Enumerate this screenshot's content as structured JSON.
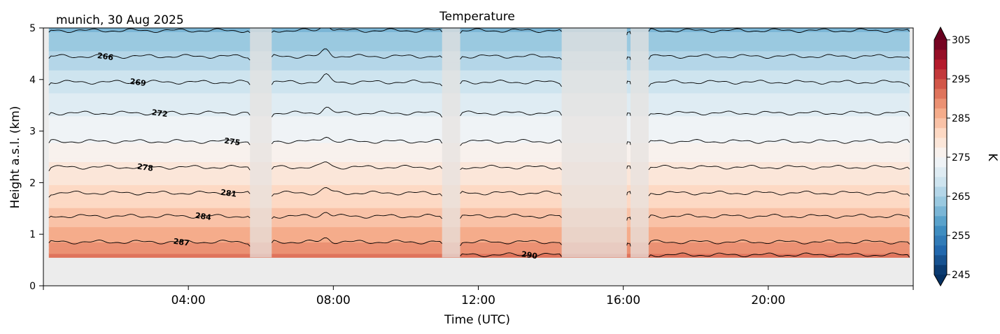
{
  "chart_data": {
    "type": "heatmap",
    "title": "Temperature",
    "subtitle": "munich, 30 Aug 2025",
    "xlabel": "Time (UTC)",
    "ylabel": "Height a.s.l. (km)",
    "x_unit": "hours UTC",
    "xlim": [
      0,
      24
    ],
    "ylim": [
      0,
      5
    ],
    "x_ticks": [
      {
        "value": 4,
        "label": "04:00"
      },
      {
        "value": 8,
        "label": "08:00"
      },
      {
        "value": 12,
        "label": "12:00"
      },
      {
        "value": 16,
        "label": "16:00"
      },
      {
        "value": 20,
        "label": "20:00"
      }
    ],
    "y_ticks": [
      {
        "value": 0,
        "label": "0"
      },
      {
        "value": 1,
        "label": "1"
      },
      {
        "value": 2,
        "label": "2"
      },
      {
        "value": 3,
        "label": "3"
      },
      {
        "value": 4,
        "label": "4"
      },
      {
        "value": 5,
        "label": "5"
      }
    ],
    "data_height_range_km": [
      0.55,
      5.0
    ],
    "data_time_range_h": [
      0.15,
      23.9
    ],
    "colormap": "RdBu_r",
    "colorbar": {
      "label": "K",
      "range": [
        245,
        305
      ],
      "ticks": [
        245,
        255,
        265,
        275,
        285,
        295,
        305
      ],
      "extend": "both"
    },
    "gaps_hours": [
      [
        5.7,
        6.3
      ],
      [
        11.0,
        11.5
      ],
      [
        14.3,
        16.1
      ],
      [
        16.2,
        16.7
      ]
    ],
    "temperature_profile": [
      {
        "height_km": 0.55,
        "temp_k": 290.5
      },
      {
        "height_km": 0.8,
        "temp_k": 288
      },
      {
        "height_km": 1.3,
        "temp_k": 284
      },
      {
        "height_km": 1.8,
        "temp_k": 281
      },
      {
        "height_km": 2.3,
        "temp_k": 278
      },
      {
        "height_km": 2.8,
        "temp_k": 275
      },
      {
        "height_km": 3.35,
        "temp_k": 272
      },
      {
        "height_km": 3.9,
        "temp_k": 269
      },
      {
        "height_km": 4.45,
        "temp_k": 266
      },
      {
        "height_km": 5.0,
        "temp_k": 262
      }
    ],
    "contours": [
      {
        "level": 287,
        "height_km": 0.85,
        "label": "287",
        "label_x_h": 3.8
      },
      {
        "level": 284,
        "height_km": 1.35,
        "label": "284",
        "label_x_h": 4.4
      },
      {
        "level": 281,
        "height_km": 1.8,
        "label": "281",
        "label_x_h": 5.1
      },
      {
        "level": 278,
        "height_km": 2.3,
        "label": "278",
        "label_x_h": 2.8
      },
      {
        "level": 275,
        "height_km": 2.8,
        "label": "275",
        "label_x_h": 5.2
      },
      {
        "level": 272,
        "height_km": 3.35,
        "label": "272",
        "label_x_h": 3.2
      },
      {
        "level": 269,
        "height_km": 3.95,
        "label": "269",
        "label_x_h": 2.6
      },
      {
        "level": 266,
        "height_km": 4.45,
        "label": "266",
        "label_x_h": 1.7
      },
      {
        "level": 263,
        "height_km": 4.95,
        "label": "",
        "label_x_h": 0
      },
      {
        "level": 290,
        "height_km": 0.6,
        "label": "290",
        "label_x_h": 13.4
      }
    ]
  }
}
